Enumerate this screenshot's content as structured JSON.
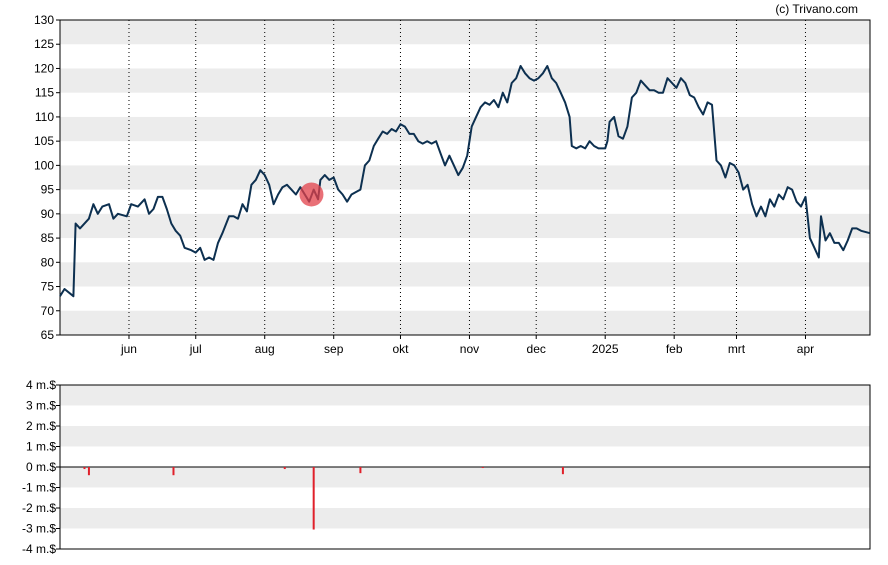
{
  "credit": "(c) Trivano.com",
  "chart_data": [
    {
      "type": "line",
      "title": "",
      "xlabel": "",
      "ylabel": "",
      "ylim": [
        65,
        130
      ],
      "y_ticks": [
        130,
        125,
        120,
        115,
        110,
        105,
        100,
        95,
        90,
        85,
        80,
        75,
        70,
        65
      ],
      "x_labels": [
        {
          "label": "jun",
          "date": "2024-06-01"
        },
        {
          "label": "jul",
          "date": "2024-07-01"
        },
        {
          "label": "aug",
          "date": "2024-08-01"
        },
        {
          "label": "sep",
          "date": "2024-09-01"
        },
        {
          "label": "okt",
          "date": "2024-10-01"
        },
        {
          "label": "nov",
          "date": "2024-11-01"
        },
        {
          "label": "dec",
          "date": "2024-12-01"
        },
        {
          "label": "2025",
          "date": "2025-01-01"
        },
        {
          "label": "feb",
          "date": "2025-02-01"
        },
        {
          "label": "mrt",
          "date": "2025-03-01"
        },
        {
          "label": "apr",
          "date": "2025-04-01"
        }
      ],
      "x_range": [
        "2024-05-01",
        "2025-04-30"
      ],
      "grid": "alternating horizontal bands, dotted vertical lines at month starts",
      "line_color": "#0d3050",
      "marker": {
        "date": "2024-08-22",
        "value": 94,
        "color": "#e2404a"
      },
      "series": [
        {
          "values": [
            [
              "2024-05-01",
              73
            ],
            [
              "2024-05-03",
              74.5
            ],
            [
              "2024-05-07",
              73
            ],
            [
              "2024-05-08",
              88
            ],
            [
              "2024-05-10",
              87
            ],
            [
              "2024-05-14",
              89
            ],
            [
              "2024-05-16",
              92
            ],
            [
              "2024-05-18",
              90
            ],
            [
              "2024-05-20",
              91.5
            ],
            [
              "2024-05-23",
              92
            ],
            [
              "2024-05-25",
              89
            ],
            [
              "2024-05-27",
              90
            ],
            [
              "2024-05-31",
              89.5
            ],
            [
              "2024-06-02",
              92
            ],
            [
              "2024-06-05",
              91.5
            ],
            [
              "2024-06-08",
              93
            ],
            [
              "2024-06-10",
              90
            ],
            [
              "2024-06-12",
              91
            ],
            [
              "2024-06-14",
              93.5
            ],
            [
              "2024-06-16",
              93.5
            ],
            [
              "2024-06-18",
              91
            ],
            [
              "2024-06-20",
              88
            ],
            [
              "2024-06-22",
              86.5
            ],
            [
              "2024-06-24",
              85.5
            ],
            [
              "2024-06-26",
              83
            ],
            [
              "2024-06-29",
              82.5
            ],
            [
              "2024-07-01",
              82
            ],
            [
              "2024-07-03",
              83
            ],
            [
              "2024-07-05",
              80.5
            ],
            [
              "2024-07-07",
              81
            ],
            [
              "2024-07-09",
              80.5
            ],
            [
              "2024-07-11",
              84
            ],
            [
              "2024-07-13",
              86
            ],
            [
              "2024-07-16",
              89.5
            ],
            [
              "2024-07-18",
              89.5
            ],
            [
              "2024-07-20",
              89
            ],
            [
              "2024-07-22",
              92
            ],
            [
              "2024-07-24",
              90.5
            ],
            [
              "2024-07-26",
              96
            ],
            [
              "2024-07-28",
              97
            ],
            [
              "2024-07-30",
              99
            ],
            [
              "2024-08-01",
              98
            ],
            [
              "2024-08-03",
              96
            ],
            [
              "2024-08-05",
              92
            ],
            [
              "2024-08-07",
              94
            ],
            [
              "2024-08-09",
              95.5
            ],
            [
              "2024-08-11",
              96
            ],
            [
              "2024-08-13",
              95
            ],
            [
              "2024-08-15",
              94
            ],
            [
              "2024-08-17",
              95.5
            ],
            [
              "2024-08-19",
              94
            ],
            [
              "2024-08-21",
              92.5
            ],
            [
              "2024-08-23",
              95
            ],
            [
              "2024-08-25",
              93
            ],
            [
              "2024-08-26",
              97
            ],
            [
              "2024-08-28",
              98
            ],
            [
              "2024-08-30",
              97
            ],
            [
              "2024-09-01",
              97.5
            ],
            [
              "2024-09-03",
              95
            ],
            [
              "2024-09-05",
              94
            ],
            [
              "2024-09-07",
              92.5
            ],
            [
              "2024-09-09",
              94
            ],
            [
              "2024-09-11",
              94.5
            ],
            [
              "2024-09-13",
              95
            ],
            [
              "2024-09-15",
              100
            ],
            [
              "2024-09-17",
              101
            ],
            [
              "2024-09-19",
              104
            ],
            [
              "2024-09-21",
              105.5
            ],
            [
              "2024-09-23",
              107
            ],
            [
              "2024-09-25",
              106.5
            ],
            [
              "2024-09-27",
              107.5
            ],
            [
              "2024-09-29",
              107
            ],
            [
              "2024-10-01",
              108.5
            ],
            [
              "2024-10-03",
              108
            ],
            [
              "2024-10-05",
              106.5
            ],
            [
              "2024-10-07",
              106.5
            ],
            [
              "2024-10-09",
              105
            ],
            [
              "2024-10-11",
              104.5
            ],
            [
              "2024-10-13",
              105
            ],
            [
              "2024-10-15",
              104.5
            ],
            [
              "2024-10-17",
              105
            ],
            [
              "2024-10-19",
              102.5
            ],
            [
              "2024-10-21",
              100
            ],
            [
              "2024-10-23",
              102
            ],
            [
              "2024-10-25",
              100
            ],
            [
              "2024-10-27",
              98
            ],
            [
              "2024-10-29",
              99.5
            ],
            [
              "2024-10-31",
              102
            ],
            [
              "2024-11-02",
              108
            ],
            [
              "2024-11-04",
              110
            ],
            [
              "2024-11-06",
              112
            ],
            [
              "2024-11-08",
              113
            ],
            [
              "2024-11-10",
              112.5
            ],
            [
              "2024-11-12",
              113.5
            ],
            [
              "2024-11-14",
              112
            ],
            [
              "2024-11-16",
              115
            ],
            [
              "2024-11-18",
              113
            ],
            [
              "2024-11-20",
              117
            ],
            [
              "2024-11-22",
              118
            ],
            [
              "2024-11-24",
              120.5
            ],
            [
              "2024-11-26",
              119
            ],
            [
              "2024-11-28",
              118
            ],
            [
              "2024-11-30",
              117.5
            ],
            [
              "2024-12-02",
              118
            ],
            [
              "2024-12-04",
              119
            ],
            [
              "2024-12-06",
              120.5
            ],
            [
              "2024-12-08",
              118
            ],
            [
              "2024-12-10",
              117
            ],
            [
              "2024-12-12",
              115
            ],
            [
              "2024-12-14",
              113
            ],
            [
              "2024-12-16",
              110
            ],
            [
              "2024-12-17",
              104
            ],
            [
              "2024-12-19",
              103.5
            ],
            [
              "2024-12-21",
              104
            ],
            [
              "2024-12-23",
              103.5
            ],
            [
              "2024-12-25",
              105
            ],
            [
              "2024-12-27",
              104
            ],
            [
              "2024-12-29",
              103.5
            ],
            [
              "2025-01-01",
              103.5
            ],
            [
              "2025-01-02",
              105
            ],
            [
              "2025-01-03",
              109
            ],
            [
              "2025-01-05",
              110
            ],
            [
              "2025-01-07",
              106
            ],
            [
              "2025-01-09",
              105.5
            ],
            [
              "2025-01-11",
              108
            ],
            [
              "2025-01-13",
              114
            ],
            [
              "2025-01-15",
              115
            ],
            [
              "2025-01-17",
              117.5
            ],
            [
              "2025-01-19",
              116.5
            ],
            [
              "2025-01-21",
              115.5
            ],
            [
              "2025-01-23",
              115.5
            ],
            [
              "2025-01-25",
              115
            ],
            [
              "2025-01-27",
              115
            ],
            [
              "2025-01-29",
              118
            ],
            [
              "2025-01-31",
              117
            ],
            [
              "2025-02-02",
              116
            ],
            [
              "2025-02-04",
              118
            ],
            [
              "2025-02-06",
              117
            ],
            [
              "2025-02-08",
              114.5
            ],
            [
              "2025-02-10",
              114
            ],
            [
              "2025-02-12",
              112
            ],
            [
              "2025-02-14",
              110.5
            ],
            [
              "2025-02-16",
              113
            ],
            [
              "2025-02-18",
              112.5
            ],
            [
              "2025-02-20",
              101
            ],
            [
              "2025-02-22",
              100
            ],
            [
              "2025-02-24",
              97.5
            ],
            [
              "2025-02-26",
              100.5
            ],
            [
              "2025-02-28",
              100
            ],
            [
              "2025-03-02",
              98.5
            ],
            [
              "2025-03-04",
              95
            ],
            [
              "2025-03-06",
              96
            ],
            [
              "2025-03-08",
              92
            ],
            [
              "2025-03-10",
              89.5
            ],
            [
              "2025-03-12",
              91.5
            ],
            [
              "2025-03-14",
              89.5
            ],
            [
              "2025-03-16",
              93
            ],
            [
              "2025-03-18",
              91.5
            ],
            [
              "2025-03-20",
              94
            ],
            [
              "2025-03-22",
              93
            ],
            [
              "2025-03-24",
              95.5
            ],
            [
              "2025-03-26",
              95
            ],
            [
              "2025-03-28",
              92.5
            ],
            [
              "2025-03-30",
              91.5
            ],
            [
              "2025-04-01",
              93.5
            ],
            [
              "2025-04-03",
              85
            ],
            [
              "2025-04-05",
              83
            ],
            [
              "2025-04-07",
              81
            ],
            [
              "2025-04-08",
              89.5
            ],
            [
              "2025-04-10",
              84.5
            ],
            [
              "2025-04-12",
              86
            ],
            [
              "2025-04-14",
              84
            ],
            [
              "2025-04-16",
              84
            ],
            [
              "2025-04-18",
              82.5
            ],
            [
              "2025-04-20",
              84.5
            ],
            [
              "2025-04-22",
              87
            ],
            [
              "2025-04-24",
              87
            ],
            [
              "2025-04-26",
              86.5
            ],
            [
              "2025-04-30",
              86
            ]
          ]
        }
      ]
    },
    {
      "type": "bar",
      "title": "",
      "xlabel": "",
      "ylabel": "",
      "ylim": [
        -4,
        4
      ],
      "y_ticks": [
        "4 m.$",
        "3 m.$",
        "2 m.$",
        "1 m.$",
        "0 m.$",
        "-1 m.$",
        "-2 m.$",
        "-3 m.$",
        "-4 m.$"
      ],
      "y_tick_values": [
        4,
        3,
        2,
        1,
        0,
        -1,
        -2,
        -3,
        -4
      ],
      "unit": "m.$",
      "bar_color": "#e0202a",
      "series": [
        {
          "values": [
            [
              "2024-05-12",
              -0.1
            ],
            [
              "2024-05-14",
              -0.4
            ],
            [
              "2024-06-21",
              -0.4
            ],
            [
              "2024-08-10",
              -0.1
            ],
            [
              "2024-08-23",
              -3.05
            ],
            [
              "2024-09-13",
              -0.3
            ],
            [
              "2024-11-07",
              -0.05
            ],
            [
              "2024-12-13",
              -0.35
            ]
          ]
        }
      ]
    }
  ]
}
